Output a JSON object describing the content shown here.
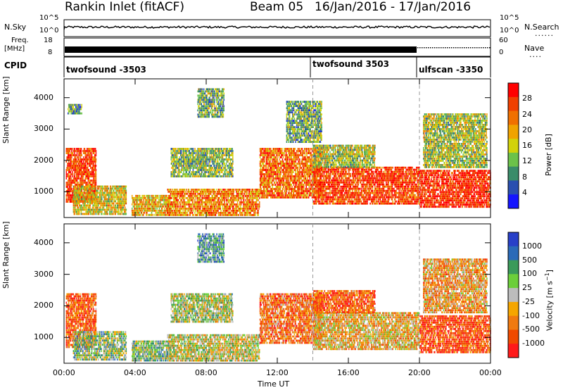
{
  "header": {
    "station": "Rankin Inlet (fitACF)",
    "beam": "Beam 05",
    "date_range": "16/Jan/2016 - 17/Jan/2016"
  },
  "strips": {
    "nsky_label": "N.Sky",
    "nsearch_label": "N.Search",
    "nsky_ticks": [
      "10^5",
      "10^0"
    ],
    "nsearch_ticks": [
      "10^5",
      "10^0"
    ],
    "freq_label_1": "Freq.",
    "freq_label_2": "[MHz]",
    "freq_ticks": [
      "18",
      "8"
    ],
    "nave_label": "Nave",
    "nave_ticks": [
      "60",
      "0"
    ],
    "cpid_label": "CPID",
    "cpid_segments": [
      {
        "name": "twofsound -3503",
        "start_hour": 0
      },
      {
        "name": "twofsound 3503",
        "start_hour": 14
      },
      {
        "name": "ulfscan -3350",
        "start_hour": 20
      }
    ]
  },
  "colors": {
    "power": [
      "#1515ff",
      "#2a4fb0",
      "#3a8c6a",
      "#6cc24a",
      "#d2d20a",
      "#f0a300",
      "#f07000",
      "#f04000",
      "#ff0000"
    ],
    "velocity": [
      "#ff1a1a",
      "#f04a00",
      "#f07a10",
      "#f5a600",
      "#bcbcbc",
      "#6ccf3a",
      "#3a9a5a",
      "#2a6ab8",
      "#2840c8"
    ]
  },
  "chart_data": [
    {
      "type": "heatmap",
      "panel": "power",
      "xlabel": "",
      "ylabel": "Slant Range [km]",
      "xlim_hours": [
        0,
        24
      ],
      "ylim": [
        180,
        4600
      ],
      "yticks": [
        "1000",
        "2000",
        "3000",
        "4000"
      ],
      "colorbar_label": "Power [dB]",
      "colorbar_ticks": [
        "4",
        "8",
        "12",
        "16",
        "20",
        "24",
        "28"
      ],
      "dashed_vlines_hours": [
        14,
        20
      ],
      "regions": [
        {
          "t": [
            0.1,
            1.8
          ],
          "r": [
            700,
            2400
          ],
          "peak": 0.85
        },
        {
          "t": [
            0.2,
            1.0
          ],
          "r": [
            3500,
            3800
          ],
          "peak": 0.3
        },
        {
          "t": [
            0.5,
            3.5
          ],
          "r": [
            300,
            1200
          ],
          "peak": 0.55
        },
        {
          "t": [
            3.8,
            6.0
          ],
          "r": [
            250,
            900
          ],
          "peak": 0.6
        },
        {
          "t": [
            5.8,
            11.0
          ],
          "r": [
            250,
            1100
          ],
          "peak": 0.7
        },
        {
          "t": [
            6.0,
            9.5
          ],
          "r": [
            1500,
            2400
          ],
          "peak": 0.4
        },
        {
          "t": [
            7.5,
            9.0
          ],
          "r": [
            3400,
            4300
          ],
          "peak": 0.35
        },
        {
          "t": [
            11.0,
            14.5
          ],
          "r": [
            800,
            2400
          ],
          "peak": 0.75
        },
        {
          "t": [
            12.5,
            14.5
          ],
          "r": [
            2600,
            3900
          ],
          "peak": 0.35
        },
        {
          "t": [
            14.0,
            20.0
          ],
          "r": [
            600,
            1800
          ],
          "peak": 0.85
        },
        {
          "t": [
            14.0,
            17.5
          ],
          "r": [
            1800,
            2500
          ],
          "peak": 0.45
        },
        {
          "t": [
            20.0,
            24.0
          ],
          "r": [
            500,
            1700
          ],
          "peak": 0.9
        },
        {
          "t": [
            20.2,
            23.8
          ],
          "r": [
            1800,
            3500
          ],
          "peak": 0.45
        }
      ]
    },
    {
      "type": "heatmap",
      "panel": "velocity",
      "xlabel": "Time UT",
      "ylabel": "Slant Range [km]",
      "xlim_hours": [
        0,
        24
      ],
      "ylim": [
        180,
        4600
      ],
      "xticks": [
        "00:00",
        "04:00",
        "08:00",
        "12:00",
        "16:00",
        "20:00",
        "00:00"
      ],
      "yticks": [
        "1000",
        "2000",
        "3000",
        "4000"
      ],
      "colorbar_label": "Velocity [m s^-1]",
      "colorbar_ticks": [
        "1000",
        "500",
        "100",
        "25",
        "-25",
        "-100",
        "-500",
        "-1000"
      ],
      "dashed_vlines_hours": [
        14,
        20
      ],
      "regions": [
        {
          "t": [
            0.1,
            1.8
          ],
          "r": [
            700,
            2400
          ],
          "peak": 0.2
        },
        {
          "t": [
            0.5,
            3.5
          ],
          "r": [
            300,
            1200
          ],
          "peak": 0.6
        },
        {
          "t": [
            3.8,
            6.0
          ],
          "r": [
            250,
            900
          ],
          "peak": 0.6
        },
        {
          "t": [
            5.8,
            11.0
          ],
          "r": [
            250,
            1100
          ],
          "peak": 0.5
        },
        {
          "t": [
            6.0,
            9.5
          ],
          "r": [
            1500,
            2400
          ],
          "peak": 0.55
        },
        {
          "t": [
            7.5,
            9.0
          ],
          "r": [
            3400,
            4300
          ],
          "peak": 0.7
        },
        {
          "t": [
            11.0,
            14.5
          ],
          "r": [
            800,
            2400
          ],
          "peak": 0.25
        },
        {
          "t": [
            14.0,
            20.0
          ],
          "r": [
            600,
            1800
          ],
          "peak": 0.4
        },
        {
          "t": [
            14.0,
            17.5
          ],
          "r": [
            1800,
            2500
          ],
          "peak": 0.2
        },
        {
          "t": [
            20.0,
            24.0
          ],
          "r": [
            500,
            1700
          ],
          "peak": 0.15
        },
        {
          "t": [
            20.2,
            23.8
          ],
          "r": [
            1800,
            3500
          ],
          "peak": 0.35
        }
      ]
    }
  ]
}
